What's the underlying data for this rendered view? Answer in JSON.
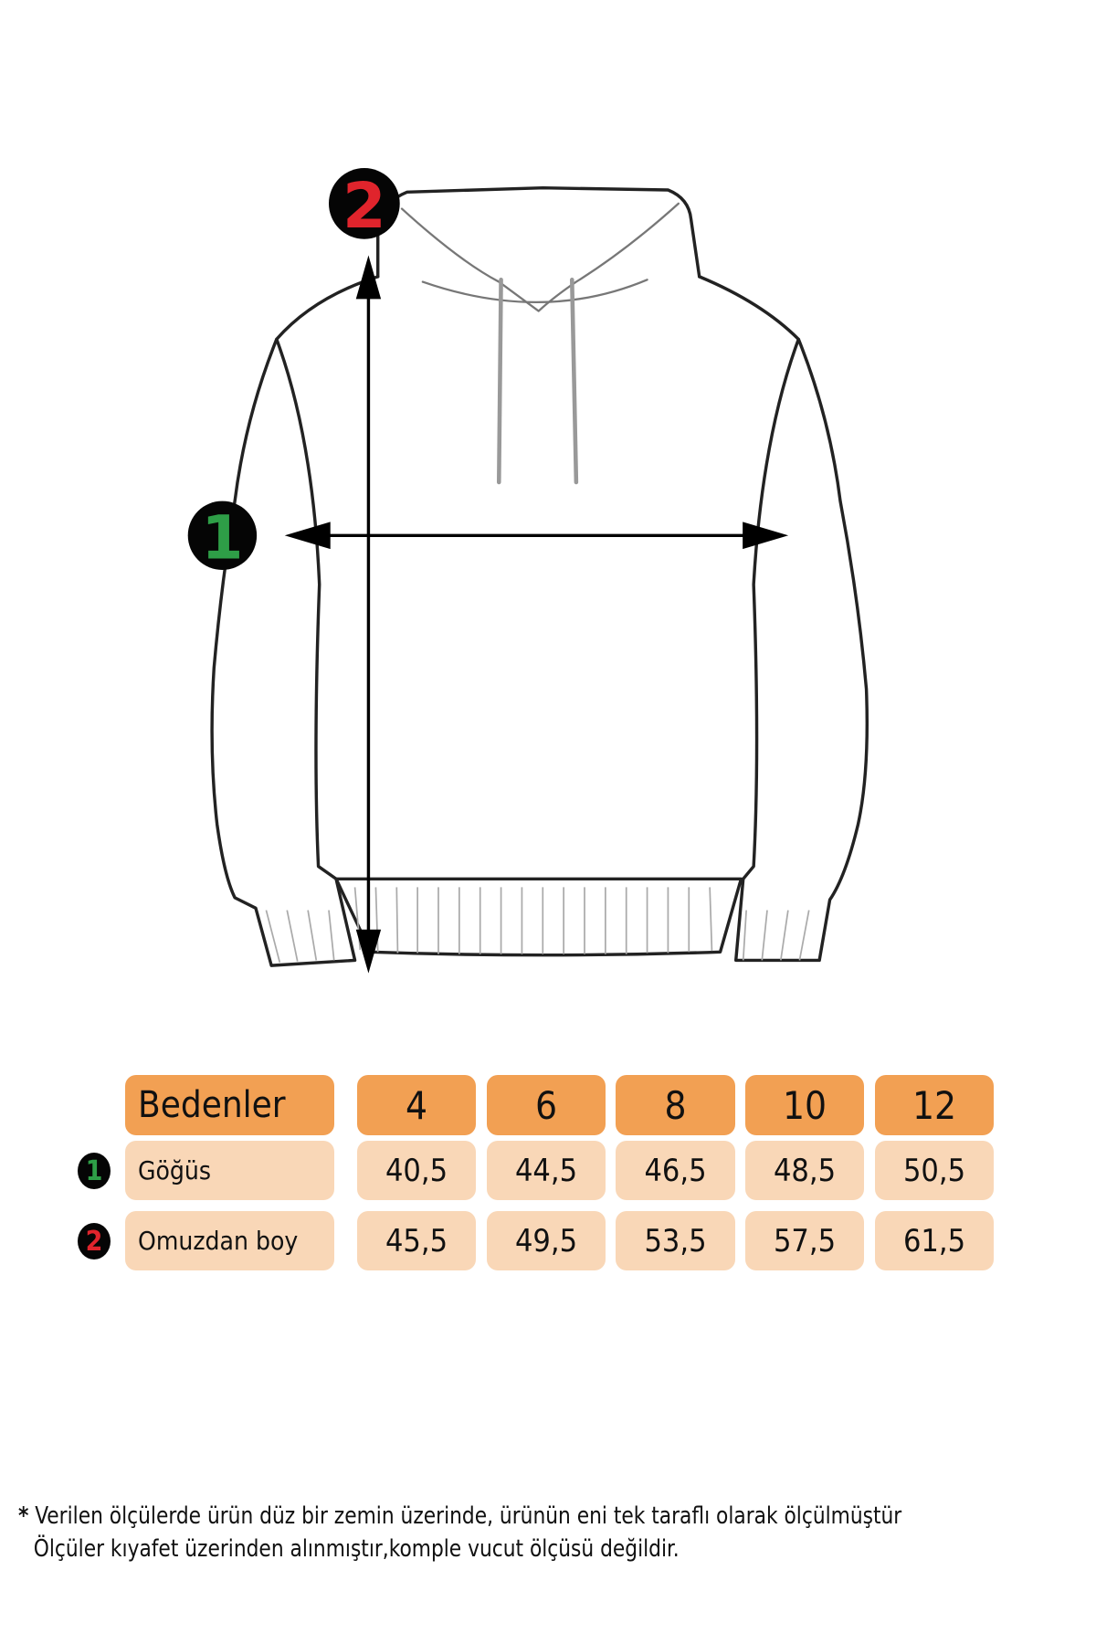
{
  "diagram": {
    "markers": [
      {
        "number": "1",
        "color": "#2e9e47"
      },
      {
        "number": "2",
        "color": "#e0242c"
      }
    ]
  },
  "table": {
    "header_label": "Bedenler",
    "sizes": [
      "4",
      "6",
      "8",
      "10",
      "12"
    ],
    "rows": [
      {
        "marker": "1",
        "marker_color": "#2e9e47",
        "label": "Göğüs",
        "values": [
          "40,5",
          "44,5",
          "46,5",
          "48,5",
          "50,5"
        ]
      },
      {
        "marker": "2",
        "marker_color": "#e0242c",
        "label": "Omuzdan boy",
        "values": [
          "45,5",
          "49,5",
          "53,5",
          "57,5",
          "61,5"
        ]
      }
    ],
    "colors": {
      "header": "#f2a053",
      "cell": "#f9d7b7"
    }
  },
  "note": {
    "asterisk": "*",
    "line1": "Verilen ölçülerde ürün düz bir zemin üzerinde, ürünün eni tek taraflı olarak ölçülmüştür",
    "line2": "Ölçüler kıyafet üzerinden alınmıştır,komple vucut ölçüsü değildir."
  }
}
